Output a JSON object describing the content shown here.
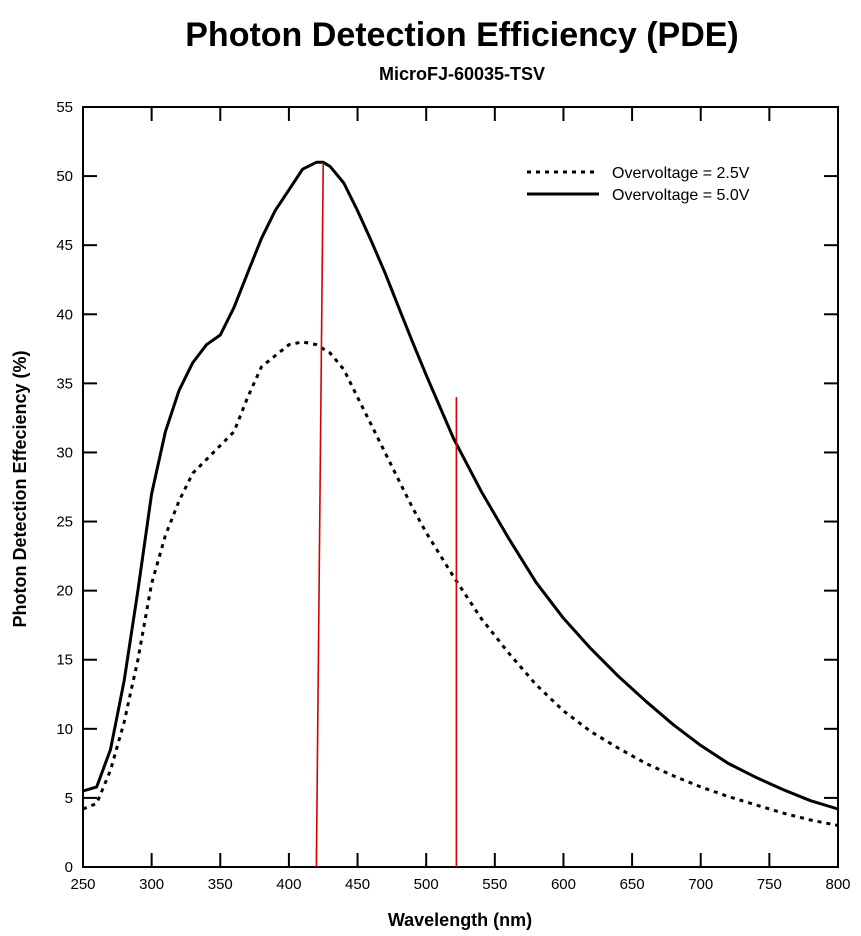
{
  "chart_data": {
    "type": "line",
    "title": "Photon Detection Efficiency (PDE)",
    "subtitle": "MicroFJ-60035-TSV",
    "xlabel": "Wavelength (nm)",
    "ylabel": "Photon Detection Effeciency (%)",
    "xlim": [
      250,
      800
    ],
    "ylim": [
      0,
      55
    ],
    "xticks": [
      250,
      300,
      350,
      400,
      450,
      500,
      550,
      600,
      650,
      700,
      750,
      800
    ],
    "yticks": [
      0,
      5,
      10,
      15,
      20,
      25,
      30,
      35,
      40,
      45,
      50,
      55
    ],
    "xtick_labels": [
      "250",
      "300",
      "350",
      "400",
      "450",
      "500",
      "550",
      "600",
      "650",
      "700",
      "750",
      "800"
    ],
    "ytick_labels": [
      "0",
      "5",
      "10",
      "15",
      "20",
      "25",
      "30",
      "35",
      "40",
      "45",
      "50",
      "55"
    ],
    "grid": false,
    "legend_position": "top-right",
    "series": [
      {
        "name": "Overvoltage = 2.5V",
        "style": "dotted",
        "color": "#000000",
        "x": [
          250,
          260,
          270,
          280,
          290,
          300,
          310,
          320,
          330,
          340,
          350,
          360,
          370,
          380,
          390,
          400,
          410,
          420,
          430,
          440,
          450,
          460,
          470,
          480,
          490,
          500,
          520,
          540,
          560,
          580,
          600,
          620,
          640,
          660,
          680,
          700,
          720,
          740,
          760,
          780,
          800
        ],
        "y": [
          4.2,
          4.6,
          7,
          10.5,
          15,
          20.5,
          24,
          26.5,
          28.5,
          29.5,
          30.5,
          31.5,
          34,
          36.2,
          37,
          37.8,
          38,
          37.8,
          37.2,
          36,
          34,
          32,
          30,
          28,
          26,
          24.2,
          21,
          18,
          15.5,
          13.2,
          11.3,
          9.8,
          8.6,
          7.5,
          6.6,
          5.8,
          5.1,
          4.5,
          3.9,
          3.4,
          3.0
        ]
      },
      {
        "name": "Overvoltage = 5.0V",
        "style": "solid",
        "color": "#000000",
        "x": [
          250,
          260,
          270,
          280,
          290,
          300,
          310,
          320,
          330,
          340,
          350,
          360,
          370,
          380,
          390,
          400,
          410,
          420,
          425,
          430,
          440,
          450,
          460,
          470,
          480,
          490,
          500,
          520,
          540,
          560,
          580,
          600,
          620,
          640,
          660,
          680,
          700,
          720,
          740,
          760,
          780,
          800
        ],
        "y": [
          5.5,
          5.8,
          8.5,
          13.5,
          20,
          27,
          31.5,
          34.5,
          36.5,
          37.8,
          38.5,
          40.5,
          43,
          45.5,
          47.5,
          49,
          50.5,
          51,
          51,
          50.7,
          49.5,
          47.5,
          45.3,
          43,
          40.5,
          38,
          35.6,
          31,
          27.2,
          23.8,
          20.6,
          18,
          15.8,
          13.8,
          12,
          10.3,
          8.8,
          7.5,
          6.5,
          5.6,
          4.8,
          4.2
        ]
      }
    ],
    "annotations": [
      {
        "type": "red-line",
        "color": "#d40000",
        "x_bottom": 420,
        "y_bottom": 0,
        "x_top": 425,
        "y_top": 51
      },
      {
        "type": "red-line",
        "color": "#d40000",
        "x_bottom": 522,
        "y_bottom": 0,
        "x_top": 522,
        "y_top": 34
      }
    ]
  }
}
